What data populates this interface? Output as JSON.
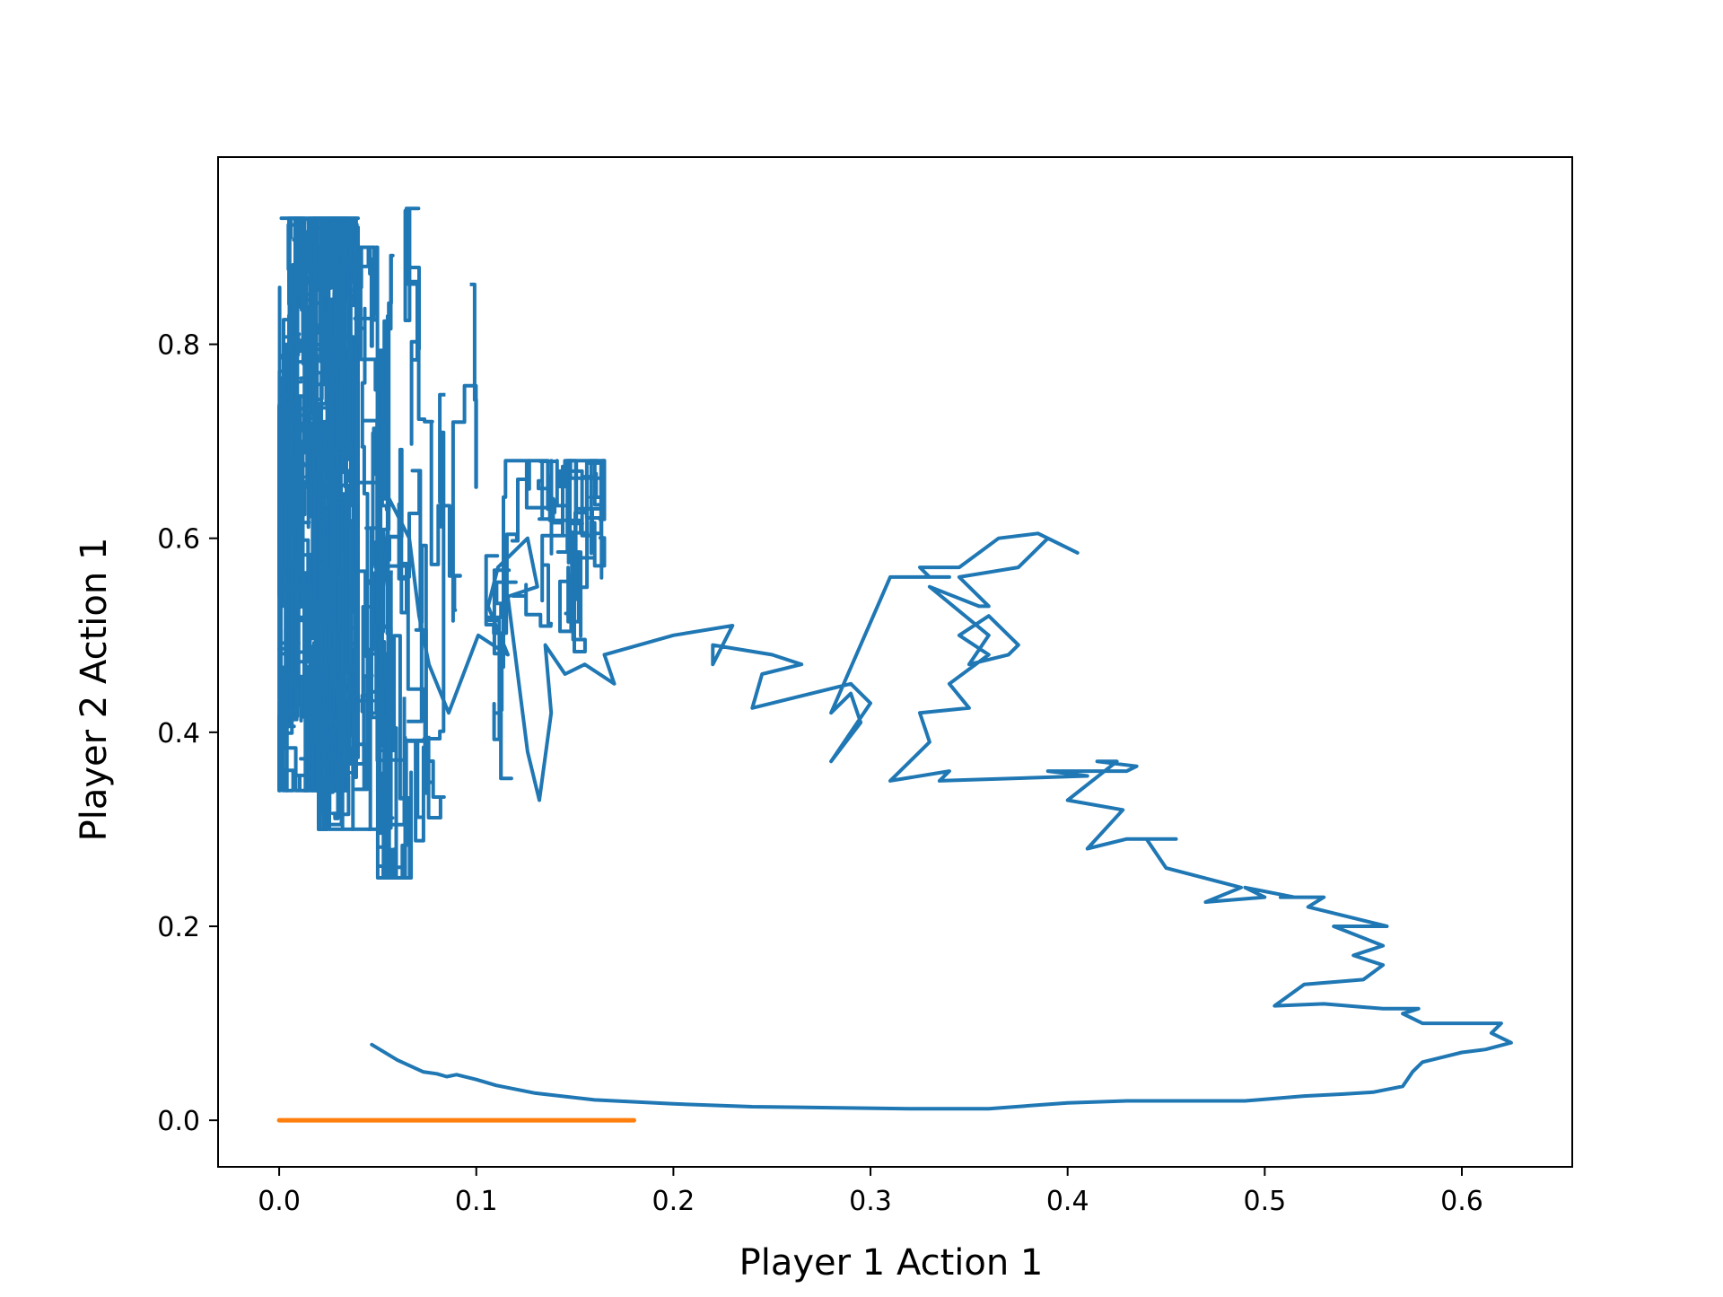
{
  "chart_data": {
    "type": "line",
    "title": "",
    "xlabel": "Player 1 Action 1",
    "ylabel": "Player 2 Action 1",
    "xlim": [
      -0.031,
      0.656
    ],
    "ylim": [
      -0.048,
      0.993
    ],
    "xticks": [
      0.0,
      0.1,
      0.2,
      0.3,
      0.4,
      0.5,
      0.6
    ],
    "xtick_labels": [
      "0.0",
      "0.1",
      "0.2",
      "0.3",
      "0.4",
      "0.5",
      "0.6"
    ],
    "yticks": [
      0.0,
      0.2,
      0.4,
      0.6,
      0.8
    ],
    "ytick_labels": [
      "0.0",
      "0.2",
      "0.4",
      "0.6",
      "0.8"
    ],
    "grid": false,
    "legend": "none",
    "series": [
      {
        "color": "#1f77b4",
        "x": [
          0.047,
          0.06,
          0.073,
          0.08,
          0.085,
          0.09,
          0.1,
          0.11,
          0.13,
          0.16,
          0.2,
          0.24,
          0.28,
          0.32,
          0.36,
          0.4,
          0.43,
          0.46,
          0.49,
          0.52,
          0.54,
          0.555,
          0.57,
          0.575,
          0.58,
          0.59,
          0.6,
          0.612,
          0.625,
          0.615,
          0.62,
          0.58,
          0.57,
          0.578,
          0.56,
          0.53,
          0.505,
          0.52,
          0.55,
          0.56,
          0.545,
          0.56,
          0.535,
          0.562,
          0.522,
          0.53,
          0.508,
          0.515,
          0.49,
          0.5,
          0.47,
          0.488,
          0.45,
          0.44,
          0.455,
          0.43,
          0.41,
          0.428,
          0.4,
          0.425,
          0.415,
          0.435,
          0.43,
          0.39,
          0.41,
          0.335,
          0.34,
          0.31,
          0.33,
          0.325,
          0.35,
          0.34,
          0.36,
          0.345,
          0.36,
          0.375,
          0.37,
          0.35,
          0.36,
          0.33,
          0.355,
          0.36,
          0.345,
          0.375,
          0.39,
          0.405,
          0.385,
          0.365,
          0.345,
          0.325,
          0.33,
          0.34,
          0.31,
          0.28,
          0.29,
          0.295,
          0.28,
          0.3,
          0.29,
          0.24,
          0.245,
          0.265,
          0.25,
          0.22,
          0.22,
          0.23,
          0.2,
          0.165,
          0.17,
          0.155,
          0.145,
          0.135,
          0.138,
          0.132,
          0.126,
          0.121,
          0.116,
          0.131,
          0.126,
          0.111,
          0.106,
          0.116,
          0.101,
          0.086,
          0.076,
          0.071,
          0.066,
          0.061,
          0.056,
          0.051
        ],
        "y": [
          0.078,
          0.062,
          0.05,
          0.048,
          0.045,
          0.047,
          0.042,
          0.036,
          0.028,
          0.021,
          0.017,
          0.014,
          0.013,
          0.012,
          0.012,
          0.018,
          0.02,
          0.02,
          0.02,
          0.025,
          0.027,
          0.029,
          0.035,
          0.05,
          0.06,
          0.065,
          0.07,
          0.073,
          0.08,
          0.09,
          0.1,
          0.1,
          0.11,
          0.115,
          0.115,
          0.12,
          0.118,
          0.14,
          0.145,
          0.16,
          0.17,
          0.18,
          0.2,
          0.2,
          0.22,
          0.23,
          0.23,
          0.23,
          0.24,
          0.23,
          0.225,
          0.24,
          0.26,
          0.29,
          0.29,
          0.29,
          0.28,
          0.32,
          0.33,
          0.37,
          0.37,
          0.365,
          0.36,
          0.36,
          0.355,
          0.35,
          0.36,
          0.35,
          0.39,
          0.42,
          0.425,
          0.45,
          0.48,
          0.5,
          0.52,
          0.49,
          0.48,
          0.47,
          0.5,
          0.55,
          0.53,
          0.53,
          0.56,
          0.57,
          0.6,
          0.585,
          0.605,
          0.6,
          0.57,
          0.57,
          0.56,
          0.56,
          0.56,
          0.42,
          0.44,
          0.41,
          0.37,
          0.43,
          0.45,
          0.425,
          0.46,
          0.47,
          0.48,
          0.49,
          0.47,
          0.51,
          0.5,
          0.48,
          0.45,
          0.47,
          0.46,
          0.49,
          0.42,
          0.33,
          0.38,
          0.46,
          0.54,
          0.55,
          0.6,
          0.57,
          0.53,
          0.48,
          0.5,
          0.42,
          0.47,
          0.52,
          0.6,
          0.62,
          0.64,
          0.5
        ]
      },
      {
        "color": "#ff7f0e",
        "x": [
          0.0,
          0.18
        ],
        "y": [
          0.0,
          0.0
        ]
      }
    ]
  }
}
